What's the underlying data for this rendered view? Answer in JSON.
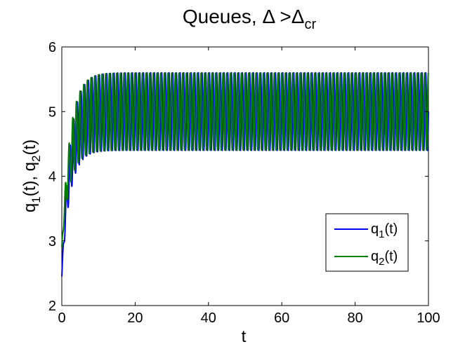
{
  "chart_data": {
    "type": "line",
    "title": {
      "main": "Queues, Δ >Δ",
      "sub": "cr"
    },
    "xlabel": "t",
    "ylabel": {
      "q": "q",
      "sub1": "1",
      "mid": "(t), q",
      "sub2": "2",
      "end": "(t)"
    },
    "xlim": [
      0,
      100
    ],
    "ylim": [
      2,
      6
    ],
    "xticks": [
      0,
      20,
      40,
      60,
      80,
      100
    ],
    "yticks": [
      2,
      3,
      4,
      5,
      6
    ],
    "grid": false,
    "legend_position": "lower-right",
    "series": [
      {
        "key": "q1",
        "name_main": "q",
        "name_sub": "1",
        "name_end": "(t)",
        "color": "#0000FF",
        "initial": 2.45,
        "envelope_max": 5.6,
        "envelope_min": 4.4,
        "period": 1.0,
        "settle_time": 7
      },
      {
        "key": "q2",
        "name_main": "q",
        "name_sub": "2",
        "name_end": "(t)",
        "color": "#008000",
        "initial": 2.9,
        "envelope_max": 5.6,
        "envelope_min": 4.4,
        "period": 1.0,
        "settle_time": 7
      }
    ]
  }
}
